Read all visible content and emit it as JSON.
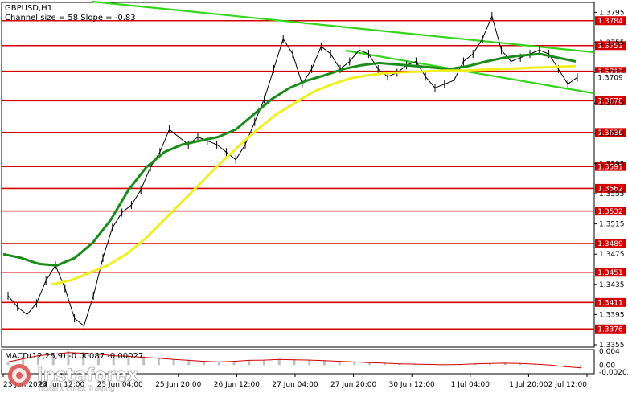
{
  "header": {
    "symbol": "GBPUSD,H1",
    "channel_info": "Channel size = 58 Slope = -0.83"
  },
  "macd": {
    "label": "MACD(12,26,9) -0.00087 -0.00027",
    "ticks": [
      "0.004",
      "0.00",
      "-0.00202"
    ]
  },
  "watermark": {
    "brand": "instaforex",
    "tagline": "Instant Forex Trading"
  },
  "chart_data": {
    "type": "line",
    "title": "GBPUSD,H1",
    "ylim": [
      1.3355,
      1.3805
    ],
    "price_ticks": [
      "1.3795",
      "1.3755",
      "1.3715",
      "1.3675",
      "1.3635",
      "1.3595",
      "1.3555",
      "1.3515",
      "1.3475",
      "1.3435",
      "1.3395",
      "1.3355"
    ],
    "x_labels": [
      "23 Jun 2025",
      "24 Jun 12:00",
      "25 Jun 04:00",
      "25 Jun 20:00",
      "26 Jun 12:00",
      "27 Jun 04:00",
      "27 Jun 20:00",
      "30 Jun 12:00",
      "1 Jul 04:00",
      "1 Jul 20:00",
      "2 Jul 12:00"
    ],
    "current_price": "1.3709",
    "levels": [
      "1.3784",
      "1.3751",
      "1.3717",
      "1.3678",
      "1.3636",
      "1.3591",
      "1.3562",
      "1.3532",
      "1.3489",
      "1.3451",
      "1.3411",
      "1.3376"
    ],
    "price": [
      1.342,
      1.3405,
      1.3395,
      1.341,
      1.344,
      1.346,
      1.343,
      1.339,
      1.338,
      1.342,
      1.347,
      1.351,
      1.353,
      1.354,
      1.356,
      1.359,
      1.361,
      1.364,
      1.363,
      1.362,
      1.363,
      1.3625,
      1.362,
      1.361,
      1.36,
      1.362,
      1.365,
      1.368,
      1.372,
      1.376,
      1.374,
      1.37,
      1.372,
      1.375,
      1.374,
      1.372,
      1.373,
      1.3745,
      1.374,
      1.372,
      1.371,
      1.3715,
      1.3725,
      1.373,
      1.371,
      1.3695,
      1.37,
      1.3705,
      1.373,
      1.374,
      1.376,
      1.379,
      1.3745,
      1.373,
      1.3735,
      1.374,
      1.3745,
      1.374,
      1.372,
      1.37,
      1.3709
    ],
    "series": [
      {
        "name": "",
        "color": "#1a8c1a",
        "values": [
          1.3475,
          1.347,
          1.3462,
          1.346,
          1.347,
          1.349,
          1.352,
          1.356,
          1.359,
          1.361,
          1.362,
          1.3625,
          1.363,
          1.364,
          1.366,
          1.368,
          1.3695,
          1.3705,
          1.3712,
          1.372,
          1.3725,
          1.3728,
          1.3726,
          1.3724,
          1.3722,
          1.372,
          1.3724,
          1.373,
          1.3735,
          1.3738,
          1.374,
          1.3735,
          1.373
        ]
      },
      {
        "name": "",
        "color": "#f0f020",
        "values": [
          1.3435,
          1.344,
          1.345,
          1.346,
          1.3475,
          1.3495,
          1.352,
          1.3545,
          1.357,
          1.3595,
          1.3618,
          1.364,
          1.366,
          1.3675,
          1.369,
          1.37,
          1.3708,
          1.3712,
          1.3715,
          1.3716,
          1.3717,
          1.3718,
          1.3718,
          1.3719,
          1.372,
          1.3721,
          1.3722,
          1.3723,
          1.3724
        ]
      }
    ],
    "macd_hist": [
      0.001,
      0.002,
      0.003,
      0.0035,
      0.004,
      0.0038,
      0.0035,
      0.003,
      0.0028,
      0.0025,
      0.0022,
      0.0018,
      0.0015,
      0.0012,
      0.001,
      0.0012,
      0.0015,
      0.0016,
      0.0018,
      0.0017,
      0.0016,
      0.0014,
      0.0012,
      0.001,
      0.0008,
      0.0006,
      0.0004,
      0.0003,
      0.0002,
      0.0001,
      0.0002,
      0.0004,
      0.0005,
      0.0006,
      0.0005,
      0.0003,
      0.0,
      -0.0005,
      -0.0009
    ]
  }
}
